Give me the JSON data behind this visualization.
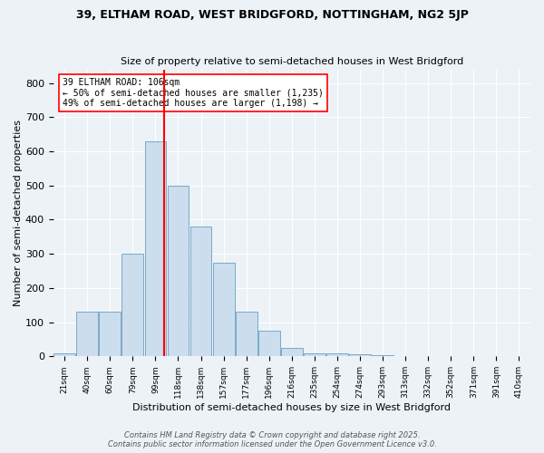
{
  "title1": "39, ELTHAM ROAD, WEST BRIDGFORD, NOTTINGHAM, NG2 5JP",
  "title2": "Size of property relative to semi-detached houses in West Bridgford",
  "xlabel": "Distribution of semi-detached houses by size in West Bridgford",
  "ylabel": "Number of semi-detached properties",
  "bins": [
    "21sqm",
    "40sqm",
    "60sqm",
    "79sqm",
    "99sqm",
    "118sqm",
    "138sqm",
    "157sqm",
    "177sqm",
    "196sqm",
    "216sqm",
    "235sqm",
    "254sqm",
    "274sqm",
    "293sqm",
    "313sqm",
    "332sqm",
    "352sqm",
    "371sqm",
    "391sqm",
    "410sqm"
  ],
  "values": [
    8,
    130,
    130,
    300,
    630,
    500,
    380,
    275,
    130,
    75,
    25,
    10,
    8,
    5,
    3,
    0,
    0,
    0,
    0,
    0,
    0
  ],
  "bar_color": "#ccdded",
  "bar_edge_color": "#7aaac8",
  "redline_x": 4.5,
  "redline_label": "39 ELTHAM ROAD: 106sqm",
  "annotation_line2": "← 50% of semi-detached houses are smaller (1,235)",
  "annotation_line3": "49% of semi-detached houses are larger (1,198) →",
  "ylim": [
    0,
    840
  ],
  "yticks": [
    0,
    100,
    200,
    300,
    400,
    500,
    600,
    700,
    800
  ],
  "footer1": "Contains HM Land Registry data © Crown copyright and database right 2025.",
  "footer2": "Contains public sector information licensed under the Open Government Licence v3.0.",
  "background_color": "#edf2f7"
}
